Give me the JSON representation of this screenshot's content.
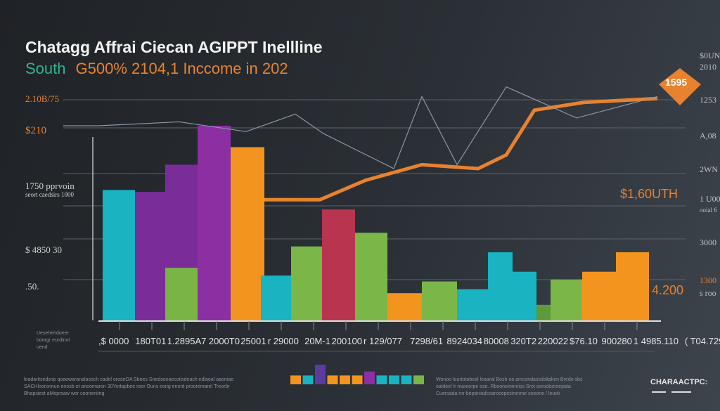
{
  "chart_data": {
    "type": "bar",
    "title": "Chatagg Affrai Ciecan AGIPPT Inellline",
    "subtitle_green": "South",
    "subtitle_orange": "G500% 2104,1 Inccome  in 202",
    "y_tick_labels_left": [
      "2.10B/75",
      "$210",
      "1750 pprvoin",
      "seort caedsirs 1000",
      "$ 4850 30",
      ".50."
    ],
    "y_tick_labels_right": [
      "$0UN",
      "2010",
      "1253",
      "A,08",
      "2WN",
      "1 U00",
      "ooial 6",
      "3000",
      "1300",
      "s roo"
    ],
    "x_tick_labels": [
      ",$ 0000",
      "180T01",
      "1.2895A7",
      "2000T0",
      "25001",
      "r 29000",
      "20M-1",
      "200100",
      "r 129/077",
      "7298/61",
      "8924034",
      "80008",
      "320T2",
      "220022",
      "$76.10",
      "900280",
      "1 4985.110",
      "( T04.7290T)"
    ],
    "categories_note_left": [
      "Ueseheridoeer",
      "boorgr eurdinol",
      "uend"
    ],
    "bars": [
      {
        "value": 67,
        "color": "#19b3c2"
      },
      {
        "value": 66,
        "color": "#7a2d99"
      },
      {
        "value": 80,
        "color": "#7a2d99"
      },
      {
        "value": 27,
        "color": "#79b444"
      },
      {
        "value": 100,
        "color": "#8b2fa2"
      },
      {
        "value": 89,
        "color": "#f3941f"
      },
      {
        "value": 23,
        "color": "#19b3c2"
      },
      {
        "value": 38,
        "color": "#7ab648"
      },
      {
        "value": 57,
        "color": "#b9344f"
      },
      {
        "value": 45,
        "color": "#7ab648"
      },
      {
        "value": 14,
        "color": "#f3941f"
      },
      {
        "value": 20,
        "color": "#7ab648"
      },
      {
        "value": 16,
        "color": "#19b3c2"
      },
      {
        "value": 35,
        "color": "#19b3c2"
      },
      {
        "value": 25,
        "color": "#19b3c2"
      },
      {
        "value": 8,
        "color": "#5f9a3a"
      },
      {
        "value": 21,
        "color": "#7ab648"
      },
      {
        "value": 25,
        "color": "#f3941f"
      },
      {
        "value": 35,
        "color": "#f3941f"
      }
    ],
    "line_series": [
      {
        "color": "#e8822f",
        "values": [
          62,
          62,
          72,
          80,
          78,
          85,
          108,
          112,
          114
        ]
      },
      {
        "color": "#8a98a8",
        "values": [
          100,
          100,
          102,
          97,
          106,
          96,
          78,
          115,
          80,
          120,
          104,
          115
        ]
      }
    ],
    "annotations": [
      "1595",
      "$1,60UTH",
      "4.200"
    ],
    "ylim": [
      0,
      120
    ],
    "grid": true
  },
  "footer": {
    "left_text": [
      "leadaritsedsnp qoaowaranalasoch cadel oroseOA Sboes Snedsoeaecotisdeach ndlaeal aaoniae",
      "SACHlooronnun enosb ot anoomaron 30Yortapbee roor Ouns eorig enerd prooremarel Treorbr",
      "Bhapsiest   aMoprsaw wor coonenitng"
    ],
    "right_text": [
      "Wonoo lourtotobeal leaaral Bosh na amcondassdsltaken Bredo sbs",
      "oaldeel lr maroorpe ose. Rboonommniss Srot sorooberoepata",
      "Cuersada ror bepaniadcoarocepesironme soeone / leuok"
    ],
    "brand": "CHARAACTPC:",
    "legend_colors": [
      "#f3941f",
      "#19b3c2",
      "#5a3c9e",
      "#f3941f",
      "#f3941f",
      "#f3941f",
      "#8b2fa2",
      "#19b3c2",
      "#19b3c2",
      "#19b3c2",
      "#7ab648"
    ],
    "legend_heights": [
      0.45,
      0.45,
      1,
      0.45,
      0.45,
      0.45,
      0.65,
      0.45,
      0.45,
      0.45,
      0.45
    ]
  }
}
